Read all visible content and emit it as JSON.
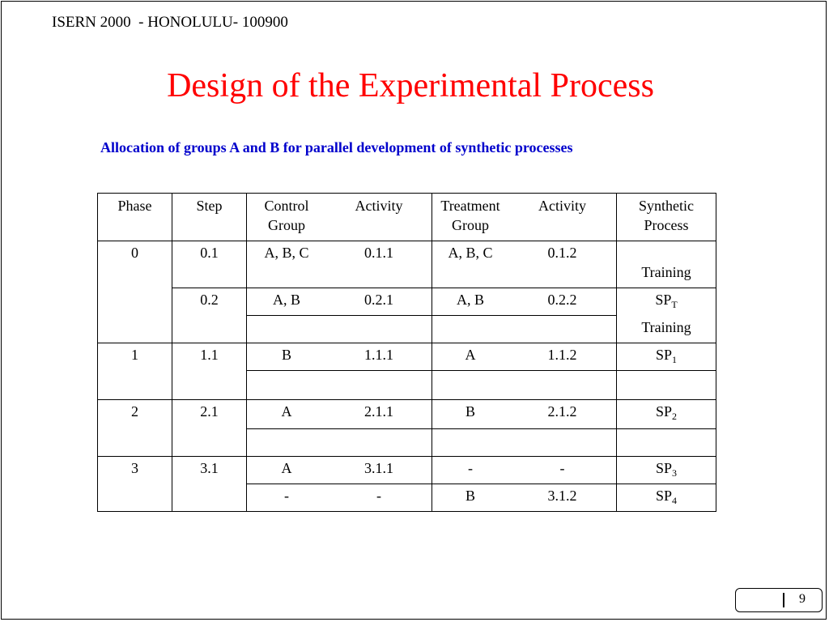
{
  "header": "ISERN 2000  - HONOLULU- 100900",
  "title": "Design of the Experimental Process",
  "subtitle": "Allocation of groups A and B for parallel development of synthetic processes",
  "table": {
    "headers": [
      "Phase",
      "Step",
      "Control\nGroup",
      "Activity",
      "Treatment\nGroup",
      "Activity",
      "Synthetic\nProcess"
    ],
    "rows": [
      {
        "phase": "0",
        "step": "0.1",
        "control": "A, B, C",
        "activity1": "0.1.1",
        "treatment": "A, B, C",
        "activity2": "0.1.2",
        "synthetic": "Training"
      },
      {
        "step": "0.2",
        "control": "A, B",
        "activity1": "0.2.1",
        "treatment": "A, B",
        "activity2": "0.2.2",
        "synthetic_base": "SP",
        "synthetic_sub": "T",
        "synthetic_extra": "Training"
      },
      {
        "phase": "1",
        "step": "1.1",
        "control": "B",
        "activity1": "1.1.1",
        "treatment": "A",
        "activity2": "1.1.2",
        "synthetic_base": "SP",
        "synthetic_sub": "1"
      },
      {
        "phase": "2",
        "step": "2.1",
        "control": "A",
        "activity1": "2.1.1",
        "treatment": "B",
        "activity2": "2.1.2",
        "synthetic_base": "SP",
        "synthetic_sub": "2"
      },
      {
        "phase": "3",
        "step": "3.1",
        "control": "A",
        "activity1": "3.1.1",
        "treatment": "-",
        "activity2": "-",
        "synthetic_base": "SP",
        "synthetic_sub": "3"
      },
      {
        "control": "-",
        "activity1": "-",
        "treatment": "B",
        "activity2": "3.1.2",
        "synthetic_base": "SP",
        "synthetic_sub": "4"
      }
    ]
  },
  "page_number": "9",
  "colors": {
    "title": "#ff0000",
    "subtitle": "#0000cc"
  }
}
